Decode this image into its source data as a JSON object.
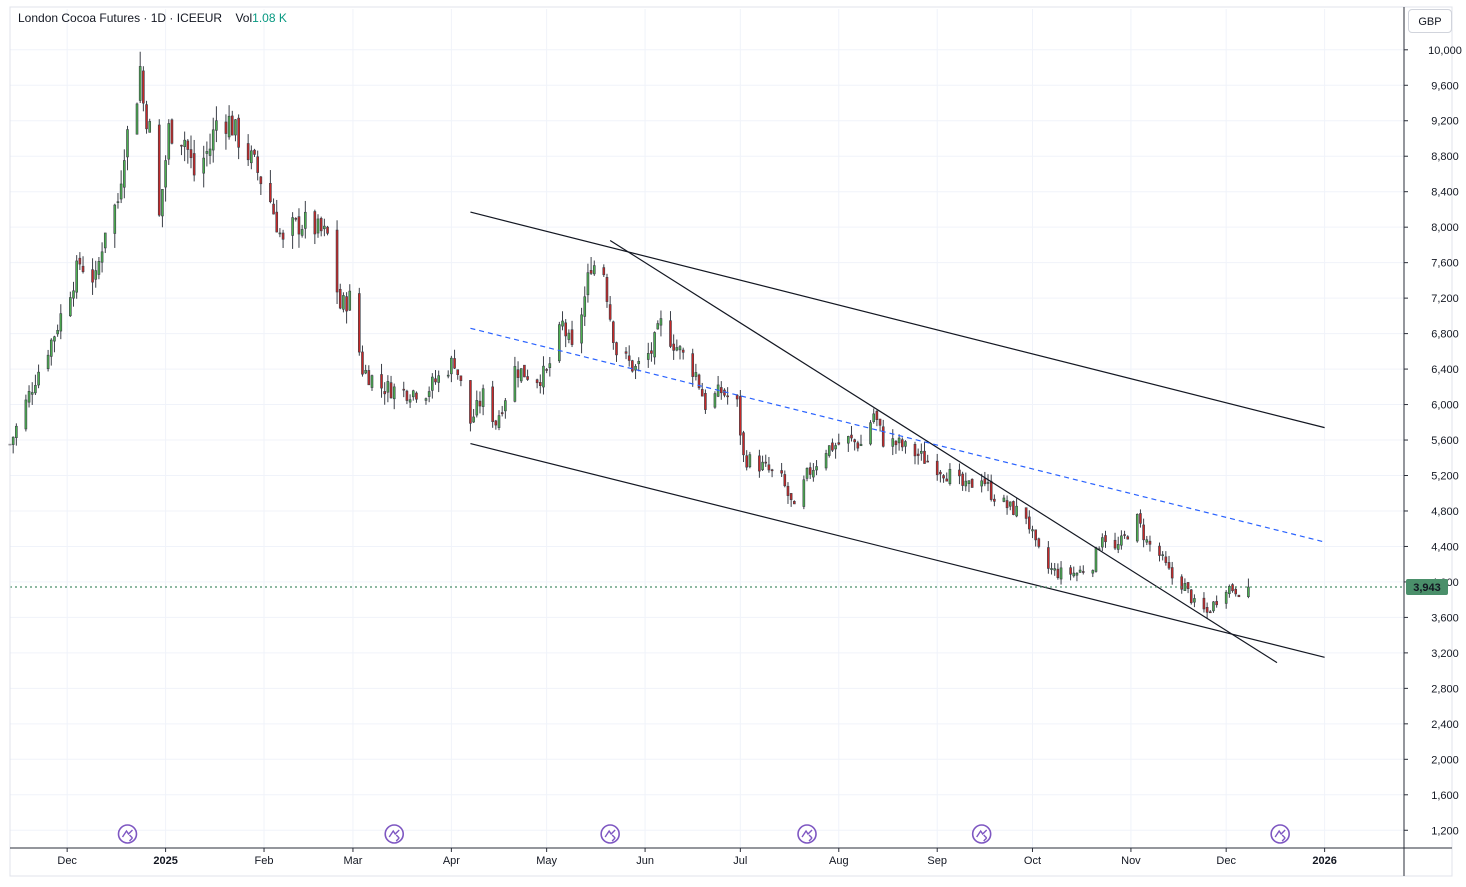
{
  "header": {
    "symbol": "London Cocoa Futures · 1D · ICEEUR",
    "volume_label": "Vol",
    "volume_value": "1.08 K",
    "currency": "GBP"
  },
  "price_badge": {
    "value": "3,943",
    "price": 3943,
    "color": "#4a8f6a"
  },
  "colors": {
    "up": "#22ab94",
    "down": "#f23645",
    "up_body": "#4caf50",
    "down_body": "#c62828",
    "trendline": "#131722",
    "dashed_line": "#2962ff",
    "last_price_line": "#4a8f6a",
    "event_icon": "#7e57c2"
  },
  "chart_data": {
    "type": "candlestick",
    "y_axis": {
      "ylim": [
        1000,
        10460
      ],
      "ticks": [
        1200,
        1600,
        2000,
        2400,
        2800,
        3200,
        3600,
        4000,
        4400,
        4800,
        5200,
        5600,
        6000,
        6400,
        6800,
        7200,
        7600,
        8000,
        8400,
        8800,
        9200,
        9600,
        10000
      ],
      "tick_labels": [
        "1,200",
        "1,600",
        "2,000",
        "2,400",
        "2,800",
        "3,200",
        "3,600",
        "4,000",
        "4,400",
        "4,800",
        "5,200",
        "5,600",
        "6,000",
        "6,400",
        "6,800",
        "7,200",
        "7,600",
        "8,000",
        "8,400",
        "8,800",
        "9,200",
        "9,600",
        "10,000"
      ]
    },
    "x_axis": {
      "range": [
        "2024-11-13",
        "2026-01-26"
      ],
      "ticks": [
        {
          "date": "2024-12-01",
          "label": "Dec"
        },
        {
          "date": "2025-01-01",
          "label": "2025",
          "bold": true
        },
        {
          "date": "2025-02-01",
          "label": "Feb"
        },
        {
          "date": "2025-03-01",
          "label": "Mar"
        },
        {
          "date": "2025-04-01",
          "label": "Apr"
        },
        {
          "date": "2025-05-01",
          "label": "May"
        },
        {
          "date": "2025-06-01",
          "label": "Jun"
        },
        {
          "date": "2025-07-01",
          "label": "Jul"
        },
        {
          "date": "2025-08-01",
          "label": "Aug"
        },
        {
          "date": "2025-09-01",
          "label": "Sep"
        },
        {
          "date": "2025-10-01",
          "label": "Oct"
        },
        {
          "date": "2025-11-01",
          "label": "Nov"
        },
        {
          "date": "2025-12-01",
          "label": "Dec"
        },
        {
          "date": "2026-01-01",
          "label": "2026",
          "bold": true
        }
      ]
    },
    "anchors": [
      [
        "2024-11-13",
        5550
      ],
      [
        "2024-11-21",
        6300
      ],
      [
        "2024-11-27",
        6800
      ],
      [
        "2024-12-05",
        7600
      ],
      [
        "2024-12-10",
        7400
      ],
      [
        "2024-12-13",
        8000
      ],
      [
        "2024-12-17",
        8300
      ],
      [
        "2024-12-19",
        8900
      ],
      [
        "2024-12-23",
        9500
      ],
      [
        "2024-12-24",
        9800
      ],
      [
        "2024-12-25",
        9400
      ],
      [
        "2024-12-27",
        9100
      ],
      [
        "2024-12-30",
        8100
      ],
      [
        "2025-01-02",
        9100
      ],
      [
        "2025-01-07",
        9000
      ],
      [
        "2025-01-10",
        8600
      ],
      [
        "2025-01-15",
        8900
      ],
      [
        "2025-01-17",
        9200
      ],
      [
        "2025-01-21",
        9200
      ],
      [
        "2025-01-24",
        9000
      ],
      [
        "2025-01-29",
        8700
      ],
      [
        "2025-02-03",
        8300
      ],
      [
        "2025-02-07",
        7800
      ],
      [
        "2025-02-10",
        8000
      ],
      [
        "2025-02-14",
        8050
      ],
      [
        "2025-02-21",
        7900
      ],
      [
        "2025-02-25",
        7100
      ],
      [
        "2025-02-28",
        7200
      ],
      [
        "2025-03-04",
        6400
      ],
      [
        "2025-03-10",
        6200
      ],
      [
        "2025-03-17",
        6150
      ],
      [
        "2025-03-24",
        6150
      ],
      [
        "2025-03-28",
        6300
      ],
      [
        "2025-04-02",
        6500
      ],
      [
        "2025-04-07",
        5800
      ],
      [
        "2025-04-11",
        6100
      ],
      [
        "2025-04-15",
        5800
      ],
      [
        "2025-04-21",
        6400
      ],
      [
        "2025-04-28",
        6300
      ],
      [
        "2025-05-01",
        6350
      ],
      [
        "2025-05-06",
        6900
      ],
      [
        "2025-05-09",
        6600
      ],
      [
        "2025-05-13",
        7200
      ],
      [
        "2025-05-15",
        7600
      ],
      [
        "2025-05-19",
        7500
      ],
      [
        "2025-05-21",
        7000
      ],
      [
        "2025-05-23",
        6600
      ],
      [
        "2025-05-29",
        6400
      ],
      [
        "2025-06-03",
        6600
      ],
      [
        "2025-06-06",
        6900
      ],
      [
        "2025-06-12",
        6600
      ],
      [
        "2025-06-17",
        6350
      ],
      [
        "2025-06-20",
        6000
      ],
      [
        "2025-06-25",
        6150
      ],
      [
        "2025-06-30",
        6000
      ],
      [
        "2025-07-02",
        5400
      ],
      [
        "2025-07-08",
        5300
      ],
      [
        "2025-07-14",
        5150
      ],
      [
        "2025-07-18",
        4800
      ],
      [
        "2025-07-22",
        5200
      ],
      [
        "2025-07-28",
        5500
      ],
      [
        "2025-08-04",
        5600
      ],
      [
        "2025-08-08",
        5550
      ],
      [
        "2025-08-12",
        5900
      ],
      [
        "2025-08-15",
        5600
      ],
      [
        "2025-08-20",
        5550
      ],
      [
        "2025-08-25",
        5450
      ],
      [
        "2025-09-01",
        5300
      ],
      [
        "2025-09-05",
        5200
      ],
      [
        "2025-09-10",
        5050
      ],
      [
        "2025-09-15",
        5200
      ],
      [
        "2025-09-18",
        5000
      ],
      [
        "2025-09-23",
        4850
      ],
      [
        "2025-09-29",
        4750
      ],
      [
        "2025-10-02",
        4400
      ],
      [
        "2025-10-06",
        4150
      ],
      [
        "2025-10-09",
        4100
      ],
      [
        "2025-10-15",
        4100
      ],
      [
        "2025-10-20",
        4200
      ],
      [
        "2025-10-23",
        4550
      ],
      [
        "2025-10-27",
        4350
      ],
      [
        "2025-10-30",
        4500
      ],
      [
        "2025-11-03",
        4700
      ],
      [
        "2025-11-06",
        4450
      ],
      [
        "2025-11-10",
        4300
      ],
      [
        "2025-11-14",
        4050
      ],
      [
        "2025-11-18",
        3950
      ],
      [
        "2025-11-21",
        3750
      ],
      [
        "2025-11-25",
        3650
      ],
      [
        "2025-11-28",
        3800
      ],
      [
        "2025-12-01",
        3950
      ],
      [
        "2025-12-05",
        3900
      ],
      [
        "2025-12-08",
        3943
      ]
    ],
    "trendlines": [
      {
        "name": "upper-channel",
        "from": [
          "2025-04-07",
          8170
        ],
        "to": [
          "2026-01-01",
          5740
        ],
        "style": "solid"
      },
      {
        "name": "lower-channel",
        "from": [
          "2025-04-07",
          5560
        ],
        "to": [
          "2026-01-01",
          3150
        ],
        "style": "solid"
      },
      {
        "name": "steep-trendline",
        "from": [
          "2025-05-21",
          7850
        ],
        "to": [
          "2025-12-17",
          3090
        ],
        "style": "solid"
      },
      {
        "name": "dashed-trendline",
        "from": [
          "2025-04-07",
          6860
        ],
        "to": [
          "2026-01-01",
          4450
        ],
        "style": "dashed"
      }
    ],
    "events": [
      "2024-12-20",
      "2025-03-14",
      "2025-05-21",
      "2025-07-22",
      "2025-09-15",
      "2025-12-18"
    ],
    "last_price": 3943,
    "grid": true,
    "volume": "1.08 K"
  }
}
